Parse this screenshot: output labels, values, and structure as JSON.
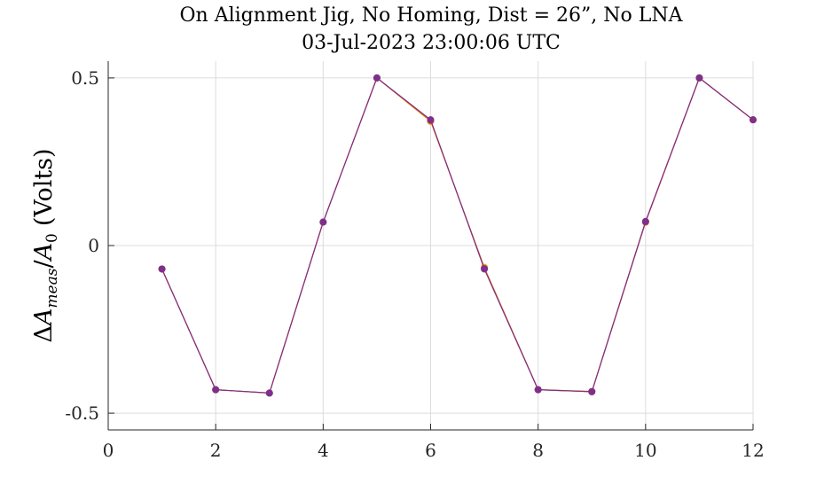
{
  "chart_data": {
    "type": "line",
    "title": "On Alignment Jig, No Homing, Dist = 26”, No LNA",
    "subtitle": "03-Jul-2023 23:00:06 UTC",
    "xlabel": "",
    "ylabel_parts": {
      "delta": "Δ",
      "a1": "A",
      "sub1": "meas",
      "slash": "/",
      "a2": "A",
      "sub2": "0",
      "units": "(Volts)"
    },
    "xlim": [
      0,
      12
    ],
    "ylim": [
      -0.55,
      0.55
    ],
    "xticks": [
      0,
      2,
      4,
      6,
      8,
      10,
      12
    ],
    "yticks": [
      -0.5,
      0,
      0.5
    ],
    "xtick_labels": [
      "0",
      "2",
      "4",
      "6",
      "8",
      "10",
      "12"
    ],
    "ytick_labels": [
      "-0.5",
      "0",
      "0.5"
    ],
    "grid": true,
    "legend": "none",
    "x": [
      1,
      2,
      3,
      4,
      5,
      6,
      7,
      8,
      9,
      10,
      11,
      12
    ],
    "series": [
      {
        "color": "#EDB120",
        "values": [
          -0.07,
          -0.43,
          -0.44,
          0.07,
          0.5,
          0.37,
          -0.065,
          -0.43,
          -0.435,
          0.07,
          0.5,
          0.375
        ]
      },
      {
        "color": "#D95319",
        "values": [
          -0.07,
          -0.43,
          -0.44,
          0.07,
          0.5,
          0.373,
          -0.068,
          -0.43,
          -0.436,
          0.07,
          0.5,
          0.375
        ]
      },
      {
        "color": "#7E2F8E",
        "values": [
          -0.07,
          -0.43,
          -0.44,
          0.07,
          0.5,
          0.375,
          -0.07,
          -0.43,
          -0.436,
          0.072,
          0.5,
          0.375
        ]
      }
    ]
  }
}
